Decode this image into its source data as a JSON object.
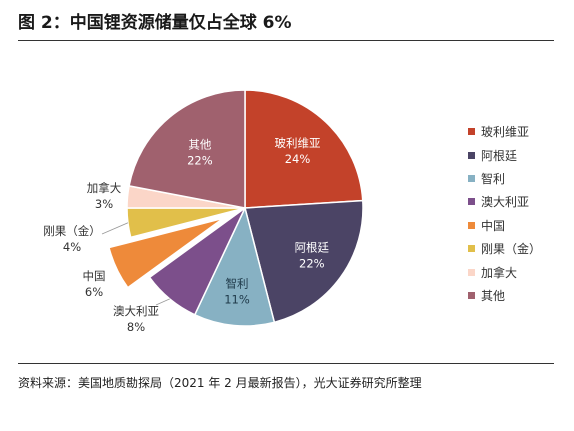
{
  "title": "图 2：中国锂资源储量仅占全球 6%",
  "source": "资料来源：美国地质勘探局（2021 年 2 月最新报告），光大证券研究所整理",
  "chart_data": {
    "type": "pie",
    "slices": [
      {
        "label": "玻利维亚",
        "value": 24,
        "value_label": "24%",
        "color": "#c3422a"
      },
      {
        "label": "阿根廷",
        "value": 22,
        "value_label": "22%",
        "color": "#4b4465"
      },
      {
        "label": "智利",
        "value": 11,
        "value_label": "11%",
        "color": "#87b1c3"
      },
      {
        "label": "澳大利亚",
        "value": 8,
        "value_label": "8%",
        "color": "#7c4f8b"
      },
      {
        "label": "中国",
        "value": 6,
        "value_label": "6%",
        "color": "#ee8a3a",
        "exploded": true
      },
      {
        "label": "刚果（金）",
        "value": 4,
        "value_label": "4%",
        "color": "#e1bf4a"
      },
      {
        "label": "加拿大",
        "value": 3,
        "value_label": "3%",
        "color": "#fbd6c8"
      },
      {
        "label": "其他",
        "value": 22,
        "value_label": "22%",
        "color": "#a0616e"
      }
    ],
    "legend_position": "right"
  }
}
